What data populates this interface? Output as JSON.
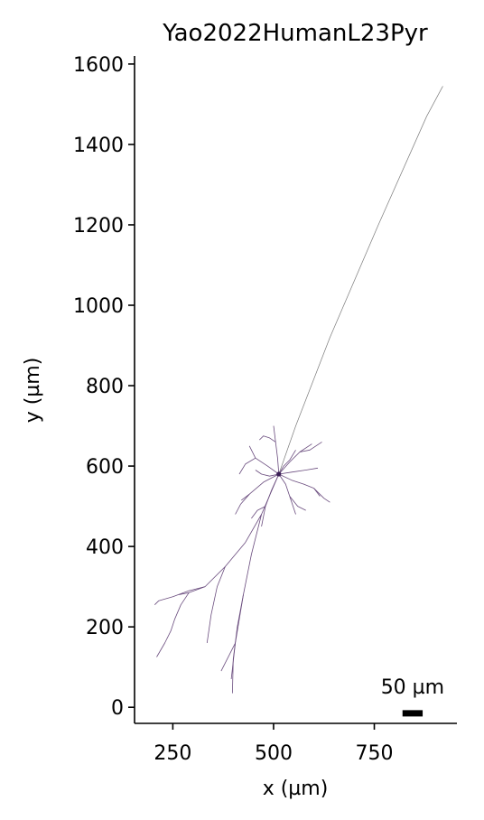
{
  "chart_data": {
    "type": "line",
    "title": "Yao2022HumanL23Pyr",
    "xlabel": "x (µm)",
    "ylabel": "y (µm)",
    "xlim": [
      155,
      955
    ],
    "ylim": [
      -40,
      1620
    ],
    "x_ticks": [
      250,
      500,
      750
    ],
    "x_tick_labels": [
      "250",
      "500",
      "750"
    ],
    "y_ticks": [
      0,
      200,
      400,
      600,
      800,
      1000,
      1200,
      1400,
      1600
    ],
    "y_tick_labels": [
      "0",
      "200",
      "400",
      "600",
      "800",
      "1000",
      "1200",
      "1400",
      "1600"
    ],
    "grid": false,
    "legend": "none",
    "colors": {
      "dendrite": "#6a4c7e",
      "axon": "#7a7a7a",
      "soma": "#3b1f55",
      "scale_bar": "#000000"
    },
    "soma": {
      "x": 513,
      "y": 580
    },
    "axon": {
      "x": [
        513,
        555,
        640,
        760,
        880,
        920
      ],
      "y": [
        580,
        700,
        920,
        1200,
        1470,
        1545
      ]
    },
    "scale_bar": {
      "label": "50 µm",
      "length": 50,
      "x": 820,
      "y": -15
    },
    "series": [
      {
        "x": [
          513,
          470,
          430,
          380,
          330,
          290,
          265
        ],
        "y": [
          580,
          480,
          410,
          350,
          300,
          285,
          280
        ]
      },
      {
        "x": [
          330,
          290,
          250,
          215,
          205
        ],
        "y": [
          300,
          290,
          275,
          265,
          255
        ]
      },
      {
        "x": [
          290,
          270,
          255,
          245,
          230,
          210
        ],
        "y": [
          285,
          255,
          220,
          190,
          160,
          125
        ]
      },
      {
        "x": [
          380,
          360,
          345,
          335
        ],
        "y": [
          350,
          300,
          230,
          160
        ]
      },
      {
        "x": [
          470,
          445,
          425,
          405,
          395
        ],
        "y": [
          480,
          380,
          280,
          160,
          70
        ]
      },
      {
        "x": [
          425,
          410,
          400,
          398
        ],
        "y": [
          280,
          200,
          120,
          35
        ]
      },
      {
        "x": [
          405,
          385,
          370
        ],
        "y": [
          160,
          120,
          90
        ]
      },
      {
        "x": [
          513,
          475,
          440,
          420
        ],
        "y": [
          580,
          560,
          530,
          515
        ]
      },
      {
        "x": [
          440,
          418,
          405
        ],
        "y": [
          530,
          505,
          480
        ]
      },
      {
        "x": [
          513,
          485,
          455,
          440
        ],
        "y": [
          580,
          600,
          620,
          650
        ]
      },
      {
        "x": [
          455,
          430,
          415
        ],
        "y": [
          620,
          605,
          580
        ]
      },
      {
        "x": [
          513,
          510,
          505,
          500
        ],
        "y": [
          580,
          620,
          660,
          700
        ]
      },
      {
        "x": [
          505,
          490,
          475,
          465
        ],
        "y": [
          660,
          670,
          675,
          665
        ]
      },
      {
        "x": [
          513,
          540,
          565,
          595
        ],
        "y": [
          580,
          610,
          635,
          655
        ]
      },
      {
        "x": [
          565,
          590,
          620
        ],
        "y": [
          635,
          640,
          660
        ]
      },
      {
        "x": [
          513,
          545,
          575,
          600,
          615
        ],
        "y": [
          580,
          565,
          555,
          545,
          525
        ]
      },
      {
        "x": [
          600,
          625,
          640
        ],
        "y": [
          545,
          520,
          510
        ]
      },
      {
        "x": [
          513,
          530,
          540,
          555
        ],
        "y": [
          580,
          555,
          525,
          480
        ]
      },
      {
        "x": [
          540,
          560,
          580
        ],
        "y": [
          525,
          500,
          490
        ]
      },
      {
        "x": [
          513,
          495,
          480,
          470
        ],
        "y": [
          580,
          540,
          500,
          450
        ]
      },
      {
        "x": [
          480,
          460,
          445
        ],
        "y": [
          500,
          490,
          470
        ]
      },
      {
        "x": [
          513,
          525,
          540,
          555
        ],
        "y": [
          580,
          600,
          615,
          640
        ]
      },
      {
        "x": [
          513,
          545,
          580,
          610
        ],
        "y": [
          580,
          585,
          590,
          595
        ]
      },
      {
        "x": [
          513,
          490,
          470,
          455
        ],
        "y": [
          580,
          575,
          580,
          590
        ]
      }
    ]
  }
}
